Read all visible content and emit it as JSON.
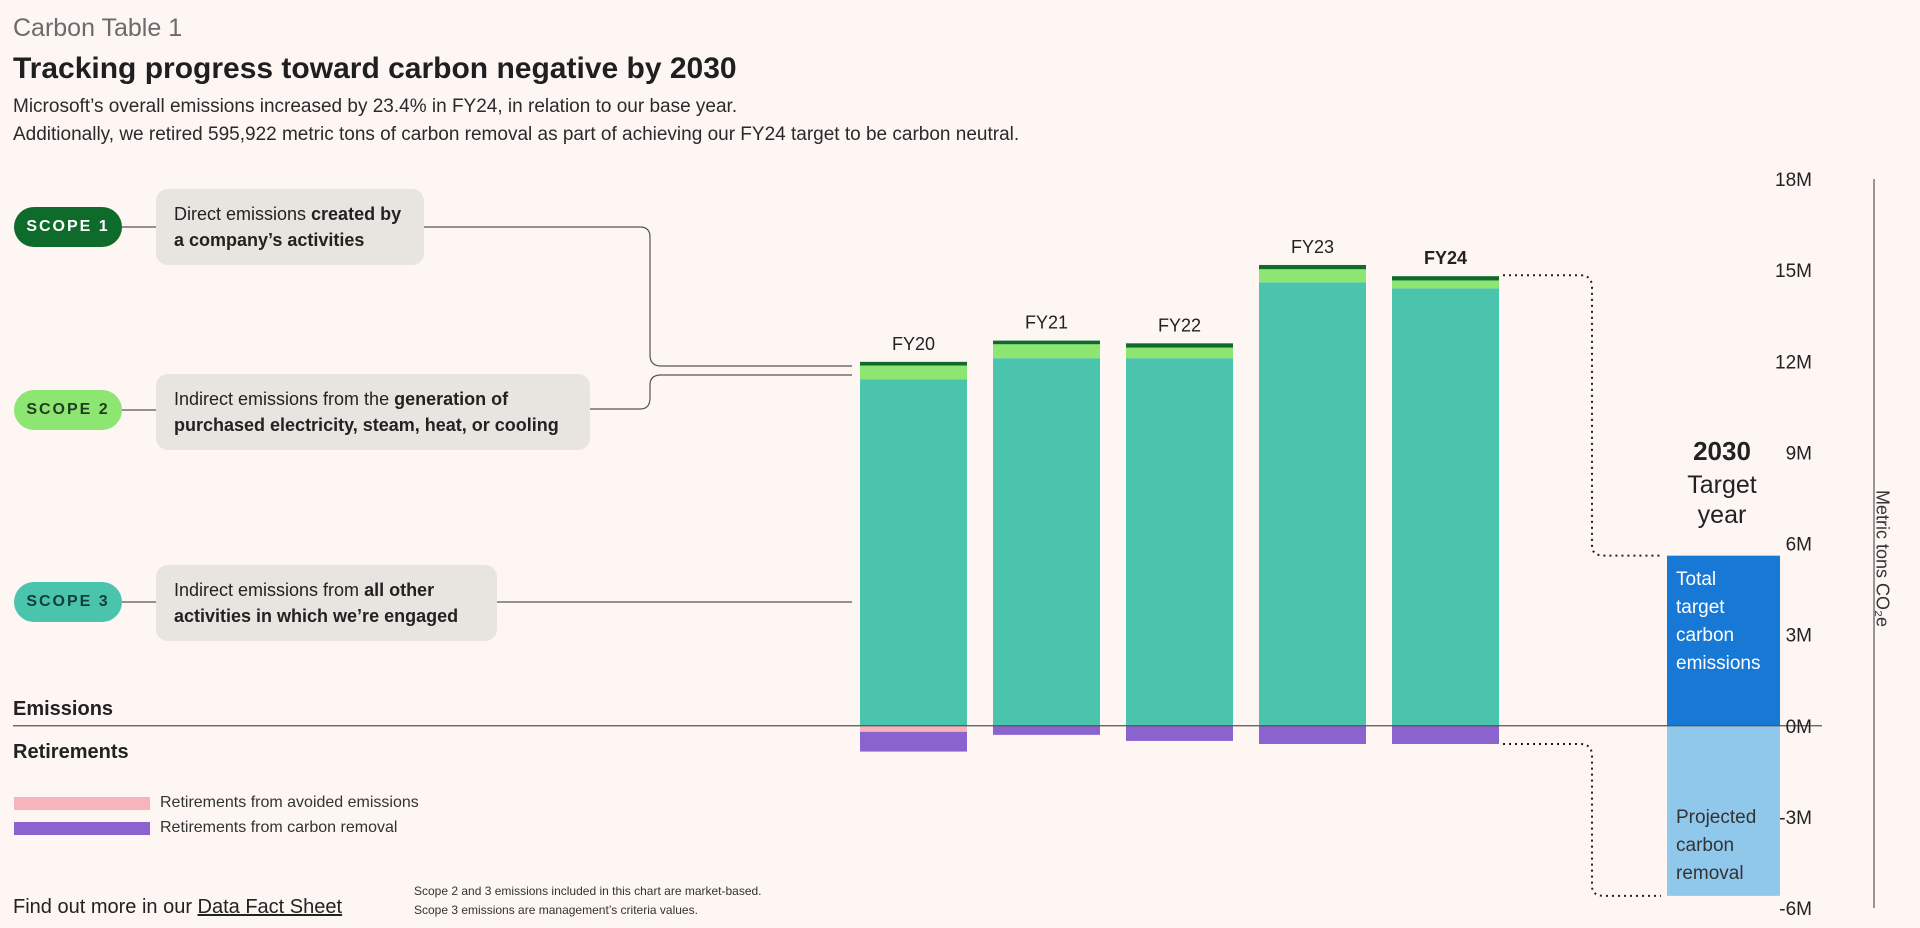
{
  "header": {
    "table_label": "Carbon Table 1",
    "title": "Tracking progress toward carbon negative by 2030",
    "subtitle_line1": "Microsoft’s overall emissions increased by 23.4% in FY24, in relation to our base year.",
    "subtitle_line2": "Additionally, we retired 595,922 metric tons of carbon removal as part of achieving our FY24 target to be carbon neutral."
  },
  "scopes": [
    {
      "pill": "SCOPE 1",
      "text_plain": "Direct emissions ",
      "text_bold": "created by a company’s activities",
      "color": "#0e6b2b",
      "text_color": "#ffffff"
    },
    {
      "pill": "SCOPE 2",
      "text_plain": "Indirect emissions from the ",
      "text_bold": "generation of purchased electricity, steam, heat, or cooling",
      "color": "#8ee672",
      "text_color": "#1f3d1f"
    },
    {
      "pill": "SCOPE 3",
      "text_plain": "Indirect emissions from ",
      "text_bold": "all other activities in which we’re engaged",
      "color": "#4bc4ad",
      "text_color": "#0f3f36"
    }
  ],
  "sections": {
    "emissions": "Emissions",
    "retirements": "Retirements"
  },
  "legend": [
    {
      "label": "Retirements from avoided emissions",
      "color": "#f7b4bd"
    },
    {
      "label": "Retirements from carbon removal",
      "color": "#8a63cf"
    }
  ],
  "footer": {
    "find_prefix": "Find out more in our ",
    "find_link": "Data Fact Sheet",
    "note1": "Scope 2 and 3 emissions included in this chart are market-based.",
    "note2": "Scope 3 emissions are management’s criteria values."
  },
  "target": {
    "year": "2030",
    "label_line1": "Target",
    "label_line2": "year",
    "emissions_lines": [
      "Total",
      "target",
      "carbon",
      "emissions"
    ],
    "removal_lines": [
      "Projected",
      "carbon",
      "removal"
    ],
    "emissions_value": 5.6,
    "removal_value": -5.6,
    "emissions_color": "#1778d6",
    "removal_color": "#90c8ec"
  },
  "chart_data": {
    "type": "bar",
    "categories": [
      "FY20",
      "FY21",
      "FY22",
      "FY23",
      "FY24"
    ],
    "series": [
      {
        "name": "Scope 3",
        "values": [
          11.4,
          12.1,
          12.1,
          14.6,
          14.4
        ],
        "color": "#4bc4ad"
      },
      {
        "name": "Scope 2",
        "values": [
          0.46,
          0.46,
          0.35,
          0.43,
          0.26
        ],
        "color": "#8ee672"
      },
      {
        "name": "Scope 1",
        "values": [
          0.12,
          0.12,
          0.14,
          0.14,
          0.14
        ],
        "color": "#0e6b2b"
      },
      {
        "name": "Retirements from avoided emissions",
        "values": [
          -0.2,
          0,
          0,
          0,
          0
        ],
        "color": "#f7b4bd"
      },
      {
        "name": "Retirements from carbon removal",
        "values": [
          -0.65,
          -0.3,
          -0.5,
          -0.6,
          -0.6
        ],
        "color": "#8a63cf"
      }
    ],
    "yticks": [
      "18M",
      "15M",
      "12M",
      "9M",
      "6M",
      "3M",
      "0M",
      "-3M",
      "-6M"
    ],
    "ylim": [
      -6,
      18
    ],
    "ylabel": "Metric tons CO₂e",
    "bold_category": "FY24"
  }
}
